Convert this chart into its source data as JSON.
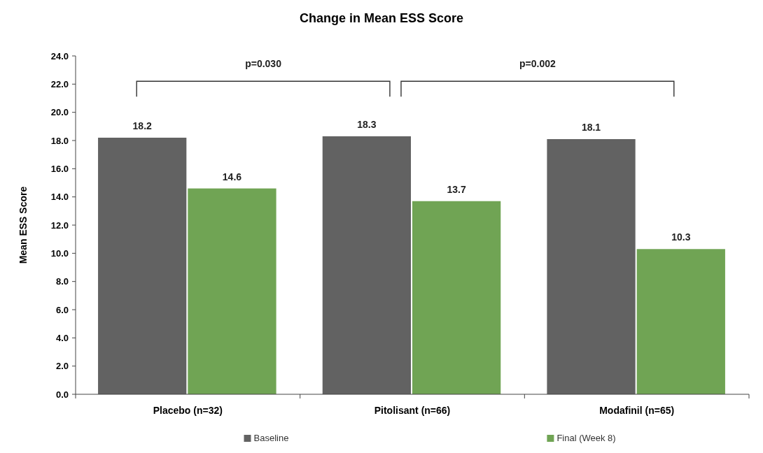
{
  "chart_data": {
    "type": "bar",
    "title": "Change in Mean ESS Score",
    "ylabel": "Mean ESS Score",
    "categories": [
      "Placebo (n=32)",
      "Pitolisant (n=66)",
      "Modafinil (n=65)"
    ],
    "series": [
      {
        "name": "Baseline",
        "color": "#626262",
        "values": [
          18.2,
          18.3,
          18.1
        ]
      },
      {
        "name": "Final (Week 8)",
        "color": "#70a454",
        "values": [
          14.6,
          13.7,
          10.3
        ]
      }
    ],
    "ylim": [
      0,
      24
    ],
    "yticks": [
      {
        "value": 0,
        "label": "0.0"
      },
      {
        "value": 2,
        "label": "2.0"
      },
      {
        "value": 4,
        "label": "4.0"
      },
      {
        "value": 6,
        "label": "6.0"
      },
      {
        "value": 8,
        "label": "8.0"
      },
      {
        "value": 10,
        "label": "10.0"
      },
      {
        "value": 12,
        "label": "12.0"
      },
      {
        "value": 14,
        "label": "14.0"
      },
      {
        "value": 16,
        "label": "16.0"
      },
      {
        "value": 18,
        "label": "18.0"
      },
      {
        "value": 20,
        "label": "20.0"
      },
      {
        "value": 22,
        "label": "22.0"
      },
      {
        "value": 24,
        "label": "24.0"
      }
    ],
    "data_labels": true,
    "grid": false,
    "legend": "bottom",
    "annotations": [
      "p=0.030",
      "p=0.002"
    ]
  }
}
